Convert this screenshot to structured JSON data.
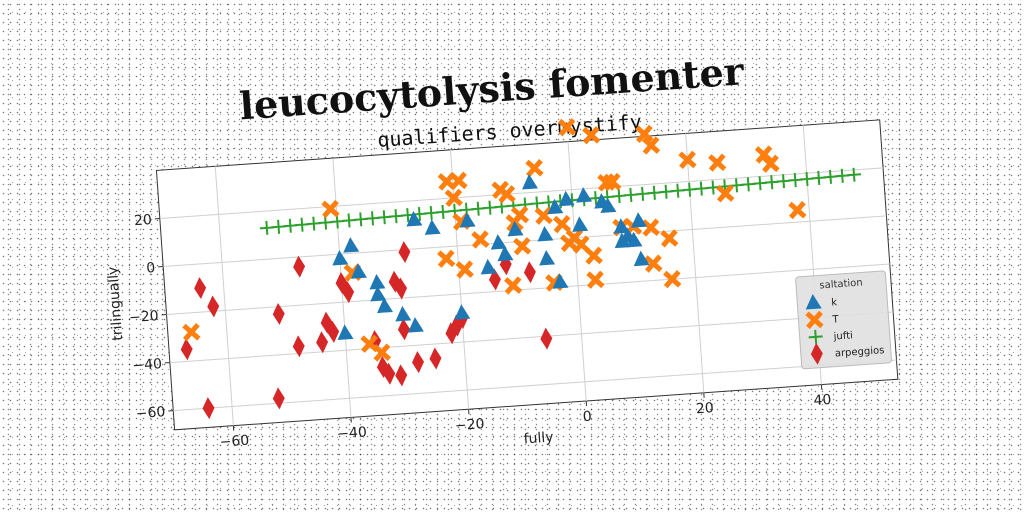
{
  "chart_data": {
    "type": "scatter",
    "title": "leucocytolysis fomenter",
    "subtitle": "qualifiers overmystify",
    "xlabel": "fully",
    "ylabel": "trilingually",
    "xlim": [
      -70,
      53
    ],
    "ylim": [
      -68,
      40
    ],
    "xticks": [
      -60,
      -40,
      -20,
      0,
      20,
      40
    ],
    "yticks": [
      -60,
      -40,
      -20,
      0,
      20
    ],
    "xtick_labels": [
      "−60",
      "−40",
      "−20",
      "0",
      "20",
      "40"
    ],
    "ytick_labels": [
      "−60",
      "−40",
      "−20",
      "0",
      "20"
    ],
    "grid": true,
    "legend_title": "saltation",
    "legend_position": "lower-right",
    "series": [
      {
        "name": "k",
        "marker": "triangle",
        "color": "#1f77b4",
        "points": [
          [
            -38,
            3
          ],
          [
            -40,
            -2
          ],
          [
            -37,
            -8
          ],
          [
            -34,
            -13
          ],
          [
            -33,
            -23
          ],
          [
            -30,
            -27
          ],
          [
            -28,
            -32
          ],
          [
            -34,
            -18
          ],
          [
            -27,
            12
          ],
          [
            -24,
            8
          ],
          [
            -18,
            10
          ],
          [
            -20,
            -28
          ],
          [
            -15,
            -10
          ],
          [
            -13,
            0
          ],
          [
            -10,
            5
          ],
          [
            -7,
            24
          ],
          [
            -5,
            2
          ],
          [
            -5,
            -8
          ],
          [
            -3,
            13
          ],
          [
            -1,
            16
          ],
          [
            -3,
            -18
          ],
          [
            1,
            5
          ],
          [
            2,
            17
          ],
          [
            5,
            14
          ],
          [
            6,
            12
          ],
          [
            8,
            3
          ],
          [
            8,
            -3
          ],
          [
            9,
            -1
          ],
          [
            10,
            -3
          ],
          [
            11,
            -11
          ],
          [
            11,
            5
          ],
          [
            -12,
            -5
          ],
          [
            -40,
            -33
          ]
        ]
      },
      {
        "name": "T",
        "marker": "x",
        "color": "#ff7f0e",
        "points": [
          [
            -66,
            -28
          ],
          [
            -41,
            19
          ],
          [
            -36,
            -38
          ],
          [
            -34,
            -42
          ],
          [
            -21,
            27
          ],
          [
            -19,
            27
          ],
          [
            -20,
            20
          ],
          [
            -19,
            10
          ],
          [
            -22,
            -5
          ],
          [
            -19,
            -10
          ],
          [
            -16,
            2
          ],
          [
            -12,
            22
          ],
          [
            -11,
            20
          ],
          [
            -9,
            11
          ],
          [
            -10,
            8
          ],
          [
            -6,
            30
          ],
          [
            -2,
            6
          ],
          [
            -1,
            -2
          ],
          [
            0,
            46
          ],
          [
            4,
            42
          ],
          [
            -5,
            10
          ],
          [
            -11,
            -18
          ],
          [
            -9,
            -2
          ],
          [
            -4,
            -18
          ],
          [
            0,
            0
          ],
          [
            1,
            -3
          ],
          [
            3,
            -8
          ],
          [
            3,
            -18
          ],
          [
            6,
            22
          ],
          [
            7,
            22
          ],
          [
            8,
            3
          ],
          [
            10,
            3
          ],
          [
            13,
            41
          ],
          [
            14,
            36
          ],
          [
            13,
            2
          ],
          [
            13,
            -13
          ],
          [
            20,
            29
          ],
          [
            25,
            27
          ],
          [
            26,
            14
          ],
          [
            33,
            29
          ],
          [
            34,
            25
          ],
          [
            38,
            5
          ],
          [
            16,
            -3
          ],
          [
            16,
            -20
          ],
          [
            -38,
            -8
          ]
        ]
      },
      {
        "name": "jufti",
        "marker": "plus",
        "color": "#2ca02c",
        "points": [
          [
            -52,
            13.0
          ],
          [
            -50,
            13.1
          ],
          [
            -48,
            13.2
          ],
          [
            -46,
            13.3
          ],
          [
            -44,
            13.4
          ],
          [
            -42,
            13.5
          ],
          [
            -40,
            13.6
          ],
          [
            -38,
            13.7
          ],
          [
            -36,
            13.8
          ],
          [
            -34,
            13.9
          ],
          [
            -32,
            14.0
          ],
          [
            -30,
            14.1
          ],
          [
            -28,
            14.2
          ],
          [
            -26,
            14.3
          ],
          [
            -24,
            14.4
          ],
          [
            -22,
            14.5
          ],
          [
            -20,
            14.6
          ],
          [
            -18,
            14.7
          ],
          [
            -16,
            14.8
          ],
          [
            -14,
            14.9
          ],
          [
            -12,
            15.0
          ],
          [
            -10,
            15.1
          ],
          [
            -8,
            15.2
          ],
          [
            -6,
            15.3
          ],
          [
            -4,
            15.4
          ],
          [
            -2,
            15.5
          ],
          [
            0,
            15.6
          ],
          [
            2,
            15.7
          ],
          [
            4,
            15.8
          ],
          [
            6,
            15.9
          ],
          [
            8,
            16.0
          ],
          [
            10,
            16.1
          ],
          [
            12,
            16.2
          ],
          [
            14,
            16.3
          ],
          [
            16,
            16.4
          ],
          [
            18,
            16.5
          ],
          [
            20,
            16.6
          ],
          [
            22,
            16.7
          ],
          [
            24,
            16.8
          ],
          [
            26,
            16.9
          ],
          [
            28,
            17.0
          ],
          [
            30,
            17.1
          ],
          [
            32,
            17.2
          ],
          [
            34,
            17.3
          ],
          [
            36,
            17.4
          ],
          [
            38,
            17.5
          ],
          [
            40,
            17.6
          ],
          [
            42,
            17.7
          ],
          [
            44,
            17.8
          ],
          [
            46,
            17.9
          ],
          [
            48,
            18.0
          ]
        ]
      },
      {
        "name": "arpeggios",
        "marker": "diamond",
        "color": "#d62728",
        "points": [
          [
            -67,
            -35
          ],
          [
            -64,
            -10
          ],
          [
            -62,
            -18
          ],
          [
            -64,
            -60
          ],
          [
            -51,
            -23
          ],
          [
            -52,
            -58
          ],
          [
            -47,
            -4
          ],
          [
            -48,
            -37
          ],
          [
            -44,
            -36
          ],
          [
            -43,
            -28
          ],
          [
            -42,
            -32
          ],
          [
            -40,
            -12
          ],
          [
            -39,
            -16
          ],
          [
            -35,
            -37
          ],
          [
            -34,
            -48
          ],
          [
            -33,
            -51
          ],
          [
            -31,
            -52
          ],
          [
            -31,
            -13
          ],
          [
            -30,
            -16
          ],
          [
            -29,
            -1
          ],
          [
            -28,
            -47
          ],
          [
            -25,
            -46
          ],
          [
            -22,
            -36
          ],
          [
            -21,
            -33
          ],
          [
            -20,
            -30
          ],
          [
            -14,
            -15
          ],
          [
            -12,
            -9
          ],
          [
            -8,
            -13
          ],
          [
            -6,
            -41
          ],
          [
            -30,
            -33
          ]
        ]
      }
    ]
  }
}
